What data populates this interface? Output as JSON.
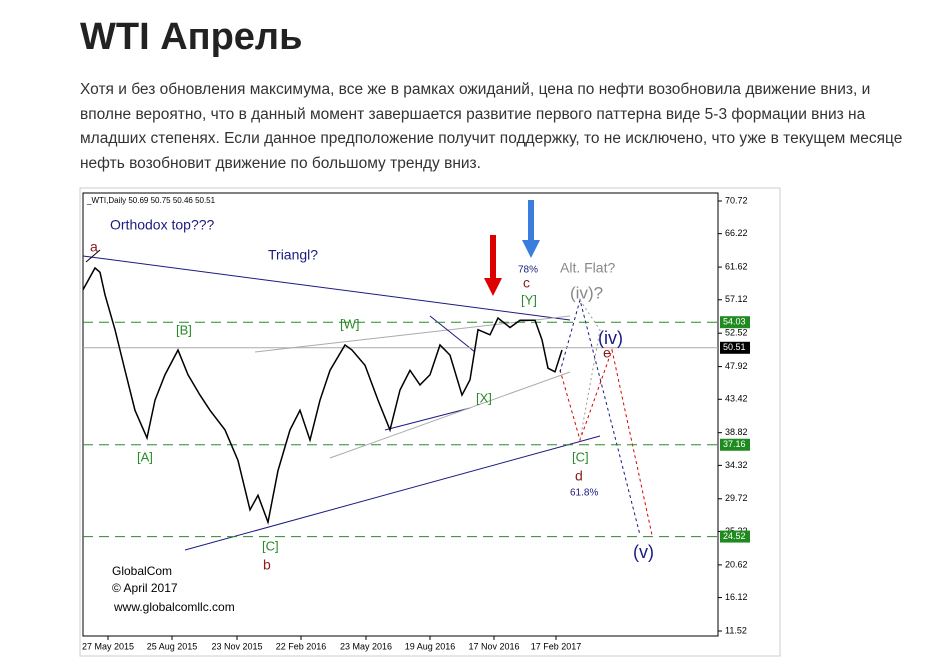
{
  "header": {
    "title": "WTI Апрель"
  },
  "body": {
    "paragraph": "Хотя и без обновления максимума, все же в рамках ожиданий, цена по нефти возобновила движение вниз, и вполне вероятно, что в данный момент завершается развитие первого паттерна виде 5-3 формации вниз на младших степенях. Если данное предположение получит поддержку, то не исключено, что уже в текущем месяце нефть возобновит движение по большому тренду вниз."
  },
  "chart_data": {
    "type": "line",
    "title": "_WTI,Daily  50.69 50.75 50.46 50.51",
    "xlim": [
      0,
      635
    ],
    "ylim": [
      10.83,
      71.82
    ],
    "xticks": [
      {
        "value": 25,
        "label": "27 May 2015"
      },
      {
        "value": 89,
        "label": "25 Aug 2015"
      },
      {
        "value": 154,
        "label": "23 Nov 2015"
      },
      {
        "value": 218,
        "label": "22 Feb 2016"
      },
      {
        "value": 283,
        "label": "23 May 2016"
      },
      {
        "value": 347,
        "label": "19 Aug 2016"
      },
      {
        "value": 411,
        "label": "17 Nov 2016"
      },
      {
        "value": 473,
        "label": "17 Feb 2017"
      }
    ],
    "yticks": [
      70.72,
      66.22,
      61.62,
      57.12,
      52.52,
      47.92,
      43.42,
      38.82,
      34.32,
      29.72,
      25.22,
      20.62,
      16.12,
      11.52
    ],
    "levels": [
      54.03,
      37.16,
      24.52
    ],
    "last_price": 50.51,
    "series": [
      {
        "name": "WTI",
        "color": "#000000",
        "x": [
          0,
          12,
          17,
          22,
          32,
          42,
          52,
          64,
          72,
          82,
          95,
          105,
          117,
          127,
          142,
          155,
          167,
          175,
          185,
          195,
          207,
          217,
          227,
          237,
          247,
          262,
          269,
          282,
          295,
          307,
          317,
          327,
          337,
          347,
          357,
          367,
          379,
          387,
          395,
          407,
          415,
          427,
          437,
          452,
          459,
          465,
          472,
          479
        ],
        "values": [
          58.5,
          61.5,
          60.9,
          57.8,
          53.0,
          47.4,
          41.9,
          38.1,
          43.3,
          46.8,
          50.2,
          46.8,
          44.0,
          41.9,
          39.2,
          35.0,
          28.2,
          30.2,
          26.5,
          33.6,
          39.2,
          41.9,
          37.8,
          43.3,
          47.4,
          50.9,
          50.2,
          48.1,
          43.3,
          39.2,
          44.7,
          47.4,
          45.4,
          46.8,
          50.9,
          49.5,
          44.0,
          46.1,
          53.0,
          52.3,
          54.6,
          53.3,
          54.3,
          54.3,
          51.6,
          47.7,
          47.2,
          50.2
        ]
      }
    ],
    "annotations": [
      "a",
      "Orthodox top???",
      "Triangl?",
      "[B]",
      "[A]",
      "[W]",
      "[C]",
      "b",
      "[X]",
      "[Y]",
      "c",
      "78%",
      "Alt. Flat?",
      "(iv)?",
      "(iv)",
      "e",
      "[C]",
      "d",
      "61.8%",
      "(v)",
      "GlobalCom",
      "© April 2017",
      "www.globalcomllc.com"
    ]
  }
}
